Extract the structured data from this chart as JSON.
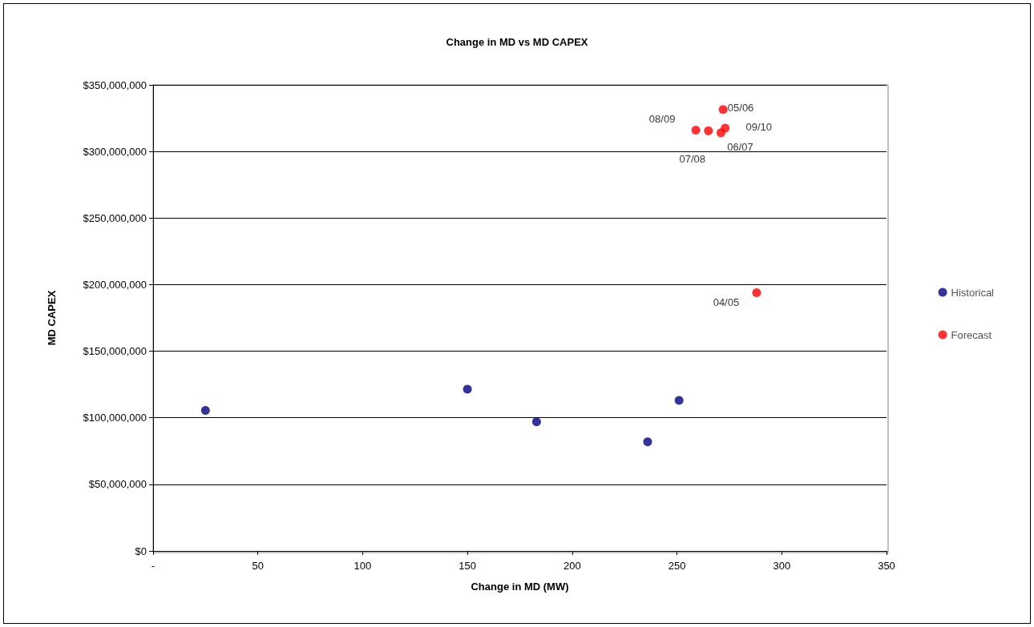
{
  "chart_data": {
    "type": "scatter",
    "title": "Change in MD vs MD CAPEX",
    "xlabel": "Change in MD (MW)",
    "ylabel": "MD CAPEX",
    "series": [
      {
        "name": "Historical",
        "color": "#000080",
        "x": [
          25,
          150,
          183,
          236,
          251
        ],
        "values": [
          105500000,
          121500000,
          97000000,
          82000000,
          113000000
        ]
      },
      {
        "name": "Forecast",
        "color": "#ff0000",
        "x": [
          288,
          272,
          271,
          265,
          259,
          273
        ],
        "values": [
          194000000,
          331500000,
          314000000,
          315500000,
          316000000,
          317500000
        ]
      }
    ],
    "annotations": [
      {
        "text": "04/05",
        "x": 288,
        "y": 194000000
      },
      {
        "text": "05/06",
        "x": 272,
        "y": 331500000
      },
      {
        "text": "06/07",
        "x": 271,
        "y": 314000000
      },
      {
        "text": "07/08",
        "x": 265,
        "y": 315500000
      },
      {
        "text": "08/09",
        "x": 259,
        "y": 316000000
      },
      {
        "text": "09/10",
        "x": 273,
        "y": 317500000
      }
    ],
    "xlim": [
      0,
      350
    ],
    "xticks": [
      {
        "value": 0,
        "label": "-"
      },
      50,
      100,
      150,
      200,
      250,
      300,
      350
    ],
    "ylim": [
      0,
      350000000
    ],
    "yticks": [
      {
        "value": 0,
        "label": "$0"
      },
      {
        "value": 50000000,
        "label": "$50,000,000"
      },
      {
        "value": 100000000,
        "label": "$100,000,000"
      },
      {
        "value": 150000000,
        "label": "$150,000,000"
      },
      {
        "value": 200000000,
        "label": "$200,000,000"
      },
      {
        "value": 250000000,
        "label": "$250,000,000"
      },
      {
        "value": 300000000,
        "label": "$300,000,000"
      },
      {
        "value": 350000000,
        "label": "$350,000,000"
      }
    ],
    "grid": "y",
    "legend": "right",
    "marker": "circle"
  }
}
